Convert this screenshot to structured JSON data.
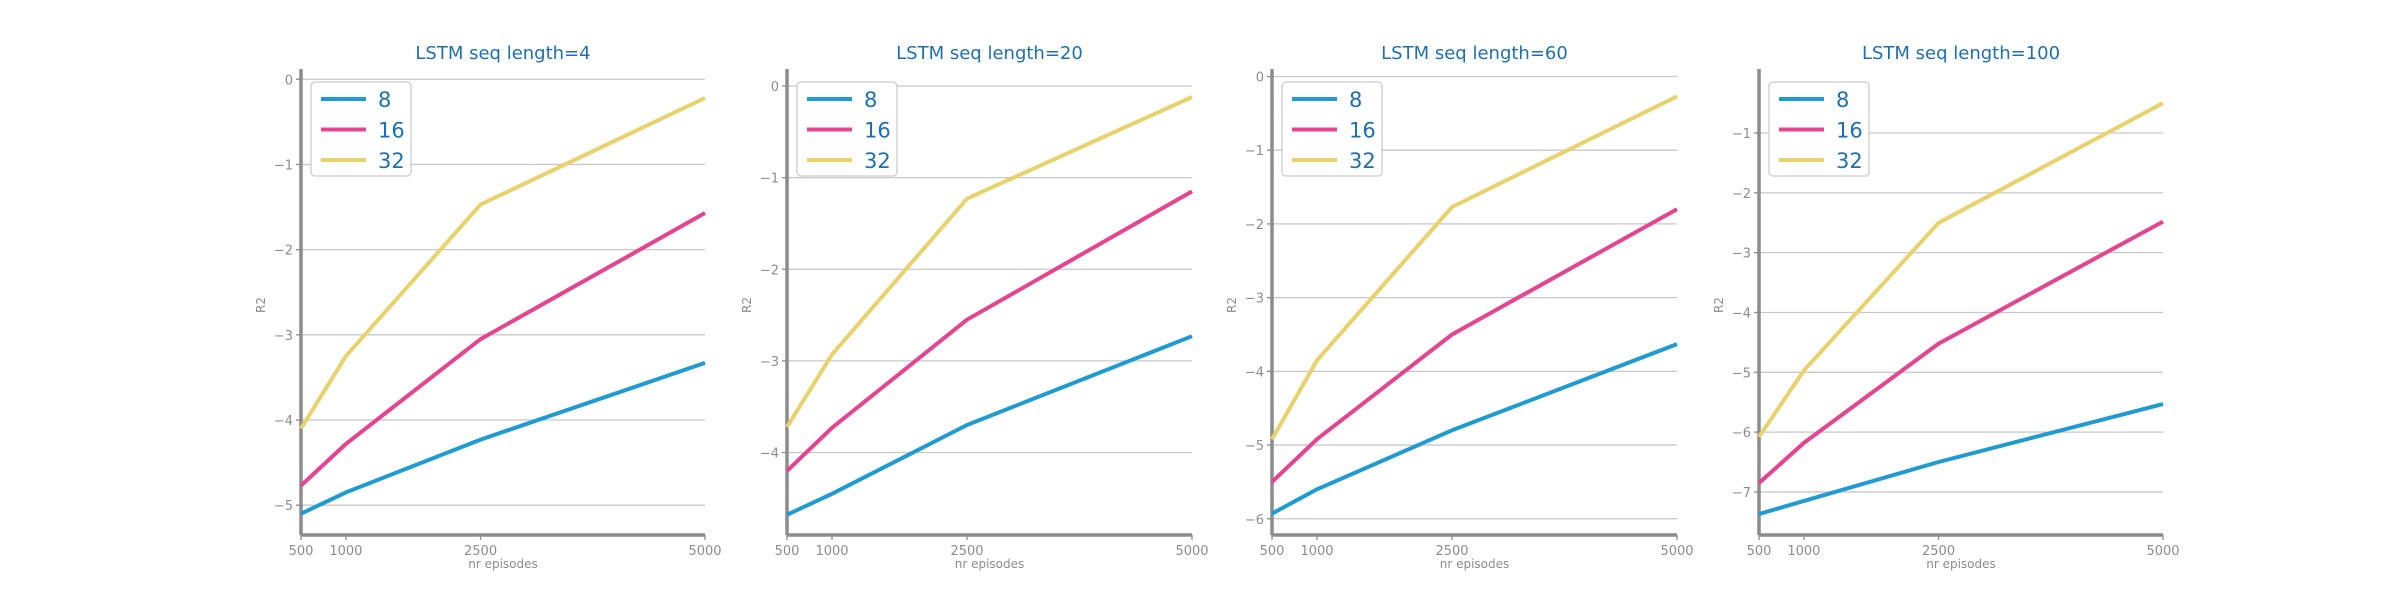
{
  "chart_data": [
    {
      "type": "line",
      "title": "LSTM seq length=4",
      "xlabel": "nr episodes",
      "ylabel": "R2",
      "x": [
        500,
        1000,
        2500,
        5000
      ],
      "xticks": [
        "500",
        "1000",
        "2500",
        "5000"
      ],
      "xlim": [
        500,
        5000
      ],
      "ylim": [
        -5.35,
        0.05
      ],
      "yticks": [
        0,
        -1,
        -2,
        -3,
        -4,
        -5
      ],
      "ytick_labels": [
        "0",
        "−1",
        "−2",
        "−3",
        "−4",
        "−5"
      ],
      "grid": "y",
      "legend_position": "top-left",
      "series": [
        {
          "name": "8",
          "color": "#1f9bd1",
          "values": [
            -5.1,
            -4.85,
            -4.23,
            -3.33
          ]
        },
        {
          "name": "16",
          "color": "#e5448f",
          "values": [
            -4.77,
            -4.28,
            -3.05,
            -1.57
          ]
        },
        {
          "name": "32",
          "color": "#e8d26e",
          "values": [
            -4.1,
            -3.25,
            -1.47,
            -0.22
          ]
        }
      ]
    },
    {
      "type": "line",
      "title": "LSTM seq length=20",
      "xlabel": "nr episodes",
      "ylabel": "R2",
      "x": [
        500,
        1000,
        2500,
        5000
      ],
      "xticks": [
        "500",
        "1000",
        "2500",
        "5000"
      ],
      "xlim": [
        500,
        5000
      ],
      "ylim": [
        -4.9,
        0.12
      ],
      "yticks": [
        0,
        -1,
        -2,
        -3,
        -4
      ],
      "ytick_labels": [
        "0",
        "−1",
        "−2",
        "−3",
        "−4"
      ],
      "grid": "y",
      "legend_position": "top-left",
      "series": [
        {
          "name": "8",
          "color": "#1f9bd1",
          "values": [
            -4.68,
            -4.45,
            -3.7,
            -2.73
          ]
        },
        {
          "name": "16",
          "color": "#e5448f",
          "values": [
            -4.2,
            -3.73,
            -2.55,
            -1.15
          ]
        },
        {
          "name": "32",
          "color": "#e8d26e",
          "values": [
            -3.72,
            -2.93,
            -1.23,
            -0.12
          ]
        }
      ]
    },
    {
      "type": "line",
      "title": "LSTM seq length=60",
      "xlabel": "nr episodes",
      "ylabel": "R2",
      "x": [
        500,
        1000,
        2500,
        5000
      ],
      "xticks": [
        "500",
        "1000",
        "2500",
        "5000"
      ],
      "xlim": [
        500,
        5000
      ],
      "ylim": [
        -6.22,
        0.02
      ],
      "yticks": [
        0,
        -1,
        -2,
        -3,
        -4,
        -5,
        -6
      ],
      "ytick_labels": [
        "0",
        "−1",
        "−2",
        "−3",
        "−4",
        "−5",
        "−6"
      ],
      "grid": "y",
      "legend_position": "top-left",
      "series": [
        {
          "name": "8",
          "color": "#1f9bd1",
          "values": [
            -5.93,
            -5.6,
            -4.8,
            -3.63
          ]
        },
        {
          "name": "16",
          "color": "#e5448f",
          "values": [
            -5.5,
            -4.92,
            -3.5,
            -1.8
          ]
        },
        {
          "name": "32",
          "color": "#e8d26e",
          "values": [
            -4.92,
            -3.85,
            -1.77,
            -0.27
          ]
        }
      ]
    },
    {
      "type": "line",
      "title": "LSTM seq length=100",
      "xlabel": "nr episodes",
      "ylabel": "R2",
      "x": [
        500,
        1000,
        2500,
        5000
      ],
      "xticks": [
        "500",
        "1000",
        "2500",
        "5000"
      ],
      "xlim": [
        500,
        5000
      ],
      "ylim": [
        -7.72,
        -0.03
      ],
      "yticks": [
        -1,
        -2,
        -3,
        -4,
        -5,
        -6,
        -7
      ],
      "ytick_labels": [
        "−1",
        "−2",
        "−3",
        "−4",
        "−5",
        "−6",
        "−7"
      ],
      "grid": "y",
      "legend_position": "top-left",
      "series": [
        {
          "name": "8",
          "color": "#1f9bd1",
          "values": [
            -7.37,
            -7.15,
            -6.5,
            -5.53
          ]
        },
        {
          "name": "16",
          "color": "#e5448f",
          "values": [
            -6.85,
            -6.18,
            -4.52,
            -2.48
          ]
        },
        {
          "name": "32",
          "color": "#e8d26e",
          "values": [
            -6.08,
            -4.97,
            -2.5,
            -0.5
          ]
        }
      ]
    }
  ],
  "style": {
    "axis_color": "#8c8c8c",
    "grid_color": "#c8c8c8",
    "title_color": "#1f6fb0",
    "legend_text_color": "#1f6fb0",
    "legend_border_color": "#cccccc"
  }
}
